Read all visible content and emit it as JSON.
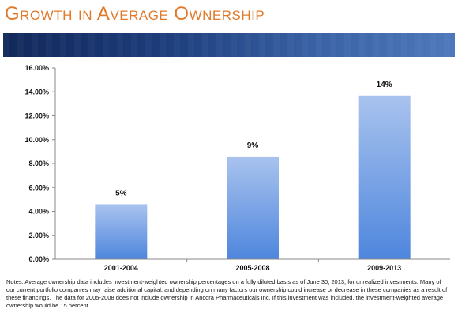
{
  "slide": {
    "title": "Growth in Average Ownership"
  },
  "colors": {
    "title": "#e07a2a",
    "banner": "#1c3c7a",
    "bar_top": "#a9c3ee",
    "bar_bottom": "#4e86dd"
  },
  "chart_data": {
    "type": "bar",
    "categories": [
      "2001-2004",
      "2005-2008",
      "2009-2013"
    ],
    "values": [
      4.6,
      8.6,
      13.7
    ],
    "data_labels": [
      "5%",
      "9%",
      "14%"
    ],
    "y_ticks": [
      "0.00%",
      "2.00%",
      "4.00%",
      "6.00%",
      "8.00%",
      "10.00%",
      "12.00%",
      "14.00%",
      "16.00%"
    ],
    "ylim": [
      0,
      16
    ],
    "y_tick_step": 2,
    "grid": false,
    "title": "",
    "xlabel": "",
    "ylabel": ""
  },
  "notes": "Notes: Average ownership data includes investment-weighted ownership percentages on a fully diluted basis as of June 30, 2013, for unrealized investments.   Many of our current portfolio companies may raise additional capital, and depending on many factors our ownership could increase or decrease in these companies as a result of these financings.  The data for 2005-2008 does not include ownership in Ancora Pharmaceuticals Inc.  If this investment was included, the investment-weighted average ownership would be 15 percent."
}
